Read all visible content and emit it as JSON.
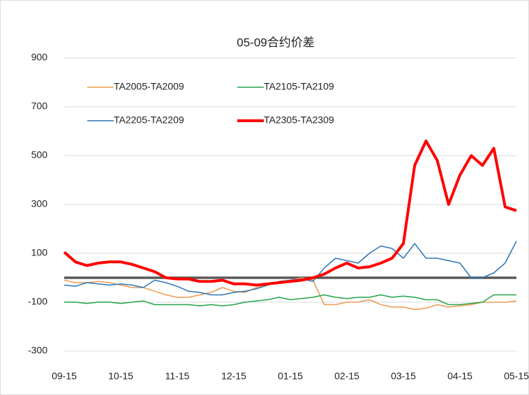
{
  "chart_data": {
    "type": "line",
    "title": "05-09合约价差",
    "categories": [
      "09-15",
      null,
      null,
      null,
      null,
      "10-15",
      null,
      null,
      null,
      null,
      "11-15",
      null,
      null,
      null,
      null,
      "12-15",
      null,
      null,
      null,
      null,
      "01-15",
      null,
      null,
      null,
      null,
      "02-15",
      null,
      null,
      null,
      null,
      "03-15",
      null,
      null,
      null,
      null,
      "04-15",
      null,
      null,
      null,
      null,
      "05-15"
    ],
    "ylim": [
      -300,
      900
    ],
    "yticks": [
      -300,
      -100,
      100,
      300,
      500,
      700,
      900
    ],
    "grid": true,
    "legend": "top",
    "series": [
      {
        "name": "TA2005-TA2009",
        "color": "#ED9A50",
        "linewidth": 1.5,
        "values": [
          -10,
          -20,
          -20,
          -15,
          -20,
          -30,
          -40,
          -40,
          -55,
          -70,
          -80,
          -80,
          -70,
          -60,
          -40,
          -55,
          -60,
          -40,
          -30,
          -20,
          -10,
          0,
          -10,
          -110,
          -110,
          -100,
          -100,
          -90,
          -110,
          -120,
          -120,
          -130,
          -125,
          -110,
          -120,
          -115,
          -110,
          -100,
          -100,
          -100,
          -95
        ]
      },
      {
        "name": "TA2105-TA2109",
        "color": "#22A44A",
        "linewidth": 1.5,
        "values": [
          -100,
          -100,
          -105,
          -100,
          -100,
          -105,
          -100,
          -95,
          -110,
          -110,
          -110,
          -110,
          -115,
          -110,
          -115,
          -110,
          -100,
          -95,
          -90,
          -80,
          -90,
          -85,
          -80,
          -70,
          -80,
          -85,
          -80,
          -80,
          -70,
          -80,
          -75,
          -80,
          -90,
          -90,
          -110,
          -110,
          -105,
          -100,
          -70,
          -70,
          -70
        ]
      },
      {
        "name": "TA2205-TA2209",
        "color": "#2E75B6",
        "linewidth": 1.5,
        "values": [
          -30,
          -35,
          -20,
          -25,
          -30,
          -25,
          -30,
          -40,
          -10,
          -20,
          -35,
          -55,
          -60,
          -70,
          -70,
          -60,
          -55,
          -45,
          -30,
          -15,
          -10,
          -5,
          -15,
          40,
          80,
          70,
          60,
          100,
          130,
          120,
          80,
          140,
          80,
          80,
          70,
          60,
          0,
          0,
          20,
          60,
          150
        ]
      },
      {
        "name": "TA2305-TA2309",
        "color": "#FF0000",
        "linewidth": 4,
        "values": [
          105,
          65,
          50,
          60,
          65,
          65,
          55,
          40,
          25,
          0,
          -5,
          -5,
          -15,
          -15,
          -10,
          -25,
          -25,
          -30,
          -25,
          -20,
          -15,
          -10,
          0,
          15,
          40,
          60,
          40,
          45,
          60,
          80,
          140,
          460,
          560,
          480,
          300,
          420,
          500,
          460,
          530,
          290,
          275
        ]
      }
    ]
  }
}
